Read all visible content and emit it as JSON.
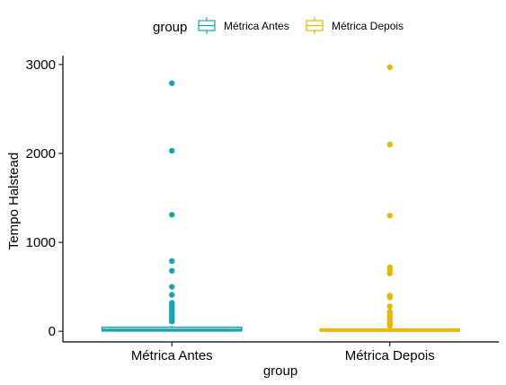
{
  "chart_data": {
    "type": "boxplot",
    "xlabel": "group",
    "ylabel": "Tempo Halstead",
    "ylim": [
      -120,
      3100
    ],
    "yticks": [
      0,
      1000,
      2000,
      3000
    ],
    "grid": false,
    "legend": {
      "title": "group",
      "placement": "top",
      "entries": [
        "Métrica Antes",
        "Métrica Depois"
      ]
    },
    "categories": [
      "Métrica Antes",
      "Métrica Depois"
    ],
    "series": [
      {
        "name": "Métrica Antes",
        "color": "#1aa3b0",
        "min": 0,
        "q1": 3,
        "median": 18,
        "q3": 45,
        "max": 60,
        "outliers": [
          2790,
          2030,
          1310,
          790,
          680,
          500,
          410,
          320,
          300,
          280,
          260,
          240,
          220,
          200,
          180,
          160,
          140,
          125,
          110
        ]
      },
      {
        "name": "Métrica Depois",
        "color": "#e7b800",
        "min": 0,
        "q1": 1,
        "median": 8,
        "q3": 25,
        "max": 35,
        "outliers": [
          2970,
          2100,
          1300,
          720,
          690,
          650,
          400,
          380,
          280,
          220,
          200,
          170,
          130,
          100,
          80,
          60
        ]
      }
    ]
  }
}
